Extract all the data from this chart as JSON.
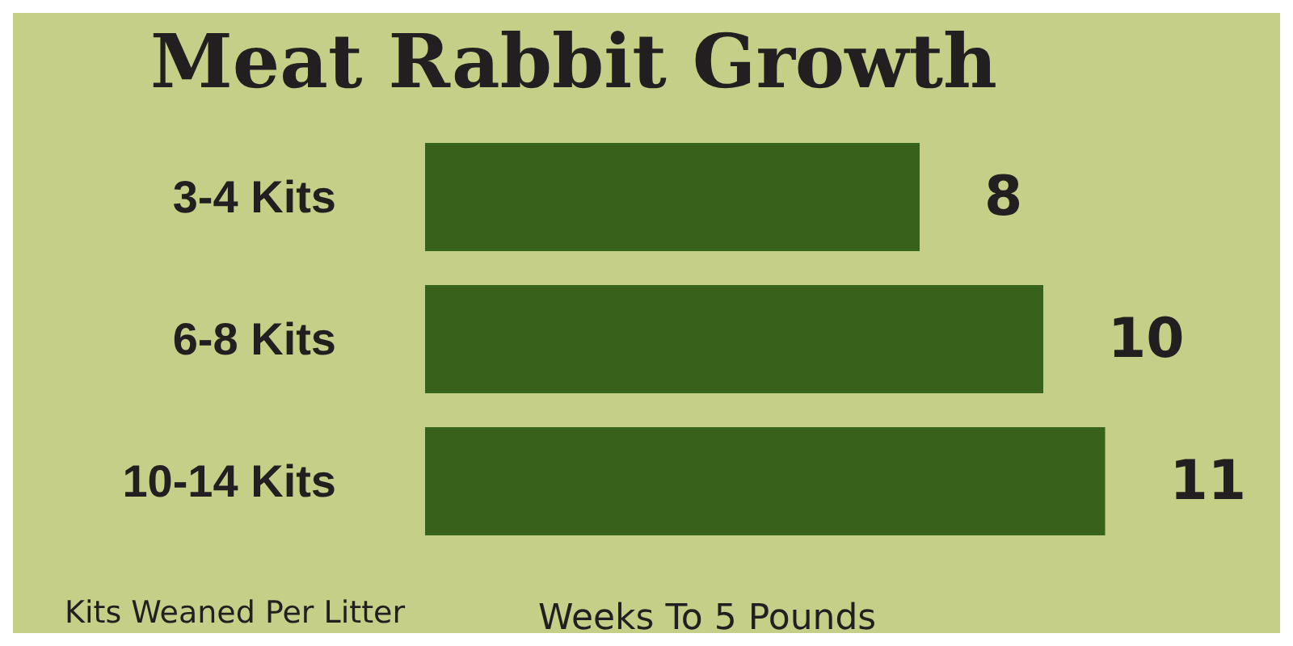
{
  "chart_data": {
    "type": "bar",
    "orientation": "horizontal",
    "title": "Meat Rabbit Growth",
    "categories": [
      "3-4 Kits",
      "6-8 Kits",
      "10-14 Kits"
    ],
    "values": [
      8,
      10,
      11
    ],
    "color": "#38621c",
    "data_labels": true,
    "xlabel": "Weeks To 5 Pounds",
    "ylabel": "Kits Weaned Per Litter"
  }
}
